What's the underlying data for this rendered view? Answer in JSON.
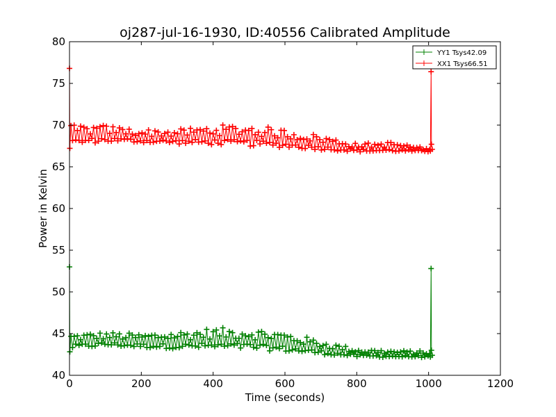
{
  "chart_data": {
    "type": "line",
    "title": "oj287-jul-16-1930, ID:40556 Calibrated Amplitude",
    "xlabel": "Time (seconds)",
    "ylabel": "Power in Kelvin",
    "xlim": [
      0,
      1200
    ],
    "ylim": [
      40,
      80
    ],
    "xticks": [
      "0",
      "200",
      "400",
      "600",
      "800",
      "1000",
      "1200"
    ],
    "yticks": [
      "40",
      "45",
      "50",
      "55",
      "60",
      "65",
      "70",
      "75",
      "80"
    ],
    "grid": false,
    "legend_position": "top-right",
    "series": [
      {
        "name": "YY1 Tsys42.09",
        "color": "#008000",
        "marker": "+",
        "summary": {
          "x_start": 0,
          "x_end": 1010,
          "initial_spike": 53.0,
          "final_spike": 52.8,
          "points": [
            {
              "x": 0,
              "lower": 42.8,
              "upper": 45.0
            },
            {
              "x": 100,
              "lower": 43.2,
              "upper": 45.2
            },
            {
              "x": 200,
              "lower": 43.0,
              "upper": 45.0
            },
            {
              "x": 300,
              "lower": 42.8,
              "upper": 45.3
            },
            {
              "x": 400,
              "lower": 42.7,
              "upper": 45.7
            },
            {
              "x": 500,
              "lower": 42.6,
              "upper": 45.7
            },
            {
              "x": 600,
              "lower": 42.4,
              "upper": 45.2
            },
            {
              "x": 700,
              "lower": 42.2,
              "upper": 44.2
            },
            {
              "x": 800,
              "lower": 42.0,
              "upper": 43.2
            },
            {
              "x": 900,
              "lower": 42.0,
              "upper": 43.0
            },
            {
              "x": 1000,
              "lower": 42.0,
              "upper": 42.9
            }
          ]
        }
      },
      {
        "name": "XX1 Tsys66.51",
        "color": "#ff0000",
        "marker": "+",
        "summary": {
          "x_start": 0,
          "x_end": 1010,
          "initial_spike": 76.8,
          "final_spike": 76.4,
          "points": [
            {
              "x": 0,
              "lower": 67.2,
              "upper": 70.0
            },
            {
              "x": 100,
              "lower": 67.6,
              "upper": 70.0
            },
            {
              "x": 200,
              "lower": 67.6,
              "upper": 69.5
            },
            {
              "x": 300,
              "lower": 67.4,
              "upper": 69.5
            },
            {
              "x": 400,
              "lower": 67.2,
              "upper": 70.0
            },
            {
              "x": 500,
              "lower": 67.0,
              "upper": 70.1
            },
            {
              "x": 600,
              "lower": 66.9,
              "upper": 69.5
            },
            {
              "x": 700,
              "lower": 66.7,
              "upper": 68.8
            },
            {
              "x": 800,
              "lower": 66.6,
              "upper": 67.8
            },
            {
              "x": 900,
              "lower": 66.6,
              "upper": 68.0
            },
            {
              "x": 1000,
              "lower": 66.7,
              "upper": 67.2
            }
          ]
        }
      }
    ]
  }
}
